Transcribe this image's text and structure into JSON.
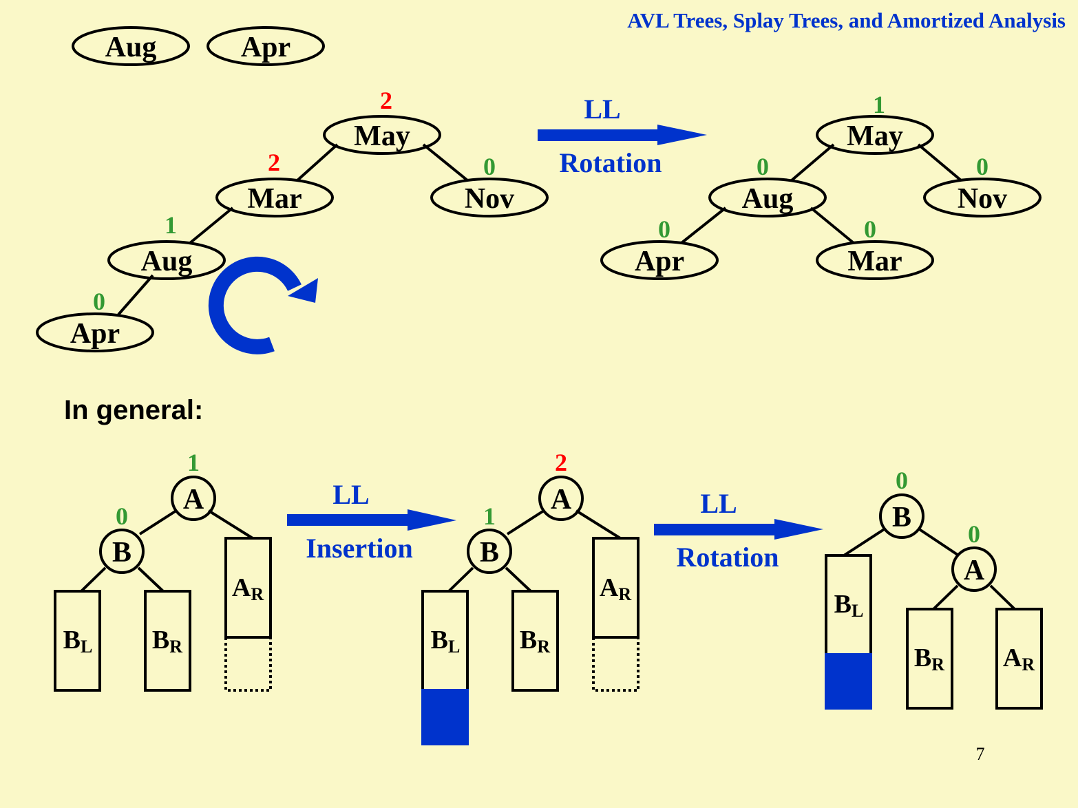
{
  "header": {
    "title": "AVL Trees, Splay Trees, and Amortized Analysis"
  },
  "colors": {
    "background": "#FAF8C8",
    "accent_blue": "#0033CC",
    "balance_red": "#FF0000",
    "balance_green": "#339933"
  },
  "insert_sequence": [
    "Aug",
    "Apr"
  ],
  "top_before": {
    "nodes": [
      {
        "label": "May",
        "bf": "2"
      },
      {
        "label": "Mar",
        "bf": "2"
      },
      {
        "label": "Nov",
        "bf": "0"
      },
      {
        "label": "Aug",
        "bf": "1"
      },
      {
        "label": "Apr",
        "bf": "0"
      }
    ]
  },
  "top_arrow": {
    "top_label": "LL",
    "bottom_label": "Rotation"
  },
  "top_after": {
    "nodes": [
      {
        "label": "May",
        "bf": "1"
      },
      {
        "label": "Aug",
        "bf": "0"
      },
      {
        "label": "Nov",
        "bf": "0"
      },
      {
        "label": "Apr",
        "bf": "0"
      },
      {
        "label": "Mar",
        "bf": "0"
      }
    ]
  },
  "general_label": "In general:",
  "bottom": {
    "d1": {
      "a_label": "A",
      "a_bf": "1",
      "b_label": "B",
      "b_bf": "0"
    },
    "arrow1": {
      "top_label": "LL",
      "bottom_label": "Insertion"
    },
    "d2": {
      "a_label": "A",
      "a_bf": "2",
      "b_label": "B",
      "b_bf": "1"
    },
    "arrow2": {
      "top_label": "LL",
      "bottom_label": "Rotation"
    },
    "d3": {
      "b_label": "B",
      "b_bf": "0",
      "a_label": "A",
      "a_bf": "0"
    },
    "subtrees": {
      "bl": "B",
      "bl_sub": "L",
      "br": "B",
      "br_sub": "R",
      "ar": "A",
      "ar_sub": "R"
    }
  },
  "page_number": "7"
}
